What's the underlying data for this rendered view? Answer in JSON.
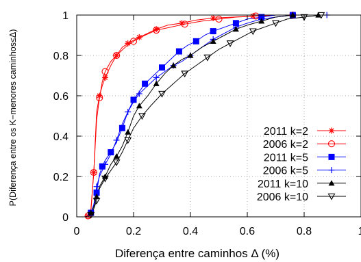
{
  "chart_data": {
    "type": "line",
    "xlabel": "Diferença entre caminhos Δ (%)",
    "ylabel": "P(Diferença entre os K−menores caminhos≤Δ)",
    "xlim": [
      0,
      1
    ],
    "ylim": [
      0,
      1
    ],
    "x_ticks": [
      "0",
      "0.2",
      "0.4",
      "0.6",
      "0.8",
      "1"
    ],
    "y_ticks": [
      "0",
      "0.2",
      "0.4",
      "0.6",
      "0.8",
      "1"
    ],
    "grid": true,
    "legend_position": "bottom-right",
    "series": [
      {
        "name": "2011 k=2",
        "color": "#ff0000",
        "marker": "asterisk",
        "points": [
          [
            0.03,
            0
          ],
          [
            0.04,
            0.005
          ],
          [
            0.05,
            0.03
          ],
          [
            0.06,
            0.22
          ],
          [
            0.07,
            0.52
          ],
          [
            0.08,
            0.6
          ],
          [
            0.09,
            0.65
          ],
          [
            0.1,
            0.69
          ],
          [
            0.12,
            0.75
          ],
          [
            0.14,
            0.8
          ],
          [
            0.16,
            0.84
          ],
          [
            0.18,
            0.86
          ],
          [
            0.2,
            0.875
          ],
          [
            0.22,
            0.89
          ],
          [
            0.25,
            0.91
          ],
          [
            0.28,
            0.93
          ],
          [
            0.32,
            0.95
          ],
          [
            0.37,
            0.96
          ],
          [
            0.42,
            0.975
          ],
          [
            0.48,
            0.985
          ],
          [
            0.55,
            0.99
          ],
          [
            0.62,
            0.995
          ],
          [
            0.7,
            1.0
          ],
          [
            0.76,
            1.0
          ]
        ]
      },
      {
        "name": "2006 k=2",
        "color": "#ff0000",
        "marker": "circle",
        "points": [
          [
            0.03,
            0
          ],
          [
            0.04,
            0.005
          ],
          [
            0.05,
            0.04
          ],
          [
            0.06,
            0.22
          ],
          [
            0.07,
            0.48
          ],
          [
            0.08,
            0.59
          ],
          [
            0.09,
            0.67
          ],
          [
            0.1,
            0.72
          ],
          [
            0.12,
            0.77
          ],
          [
            0.14,
            0.8
          ],
          [
            0.17,
            0.84
          ],
          [
            0.2,
            0.87
          ],
          [
            0.24,
            0.9
          ],
          [
            0.28,
            0.925
          ],
          [
            0.33,
            0.94
          ],
          [
            0.38,
            0.955
          ],
          [
            0.44,
            0.97
          ],
          [
            0.5,
            0.98
          ],
          [
            0.56,
            0.99
          ],
          [
            0.63,
            0.995
          ],
          [
            0.7,
            1.0
          ],
          [
            0.76,
            1.0
          ]
        ]
      },
      {
        "name": "2011 k=5",
        "color": "#0000ff",
        "marker": "square",
        "points": [
          [
            0.03,
            0
          ],
          [
            0.05,
            0.02
          ],
          [
            0.06,
            0.06
          ],
          [
            0.07,
            0.12
          ],
          [
            0.08,
            0.21
          ],
          [
            0.09,
            0.25
          ],
          [
            0.1,
            0.28
          ],
          [
            0.12,
            0.32
          ],
          [
            0.14,
            0.37
          ],
          [
            0.16,
            0.44
          ],
          [
            0.18,
            0.52
          ],
          [
            0.2,
            0.58
          ],
          [
            0.22,
            0.62
          ],
          [
            0.24,
            0.66
          ],
          [
            0.27,
            0.7
          ],
          [
            0.3,
            0.74
          ],
          [
            0.33,
            0.78
          ],
          [
            0.36,
            0.82
          ],
          [
            0.39,
            0.85
          ],
          [
            0.42,
            0.87
          ],
          [
            0.45,
            0.9
          ],
          [
            0.48,
            0.92
          ],
          [
            0.52,
            0.94
          ],
          [
            0.56,
            0.96
          ],
          [
            0.6,
            0.98
          ],
          [
            0.65,
            0.99
          ],
          [
            0.7,
            1.0
          ],
          [
            0.76,
            1.0
          ]
        ]
      },
      {
        "name": "2006 k=5",
        "color": "#0000ff",
        "marker": "plus",
        "points": [
          [
            0.03,
            0
          ],
          [
            0.05,
            0.02
          ],
          [
            0.06,
            0.06
          ],
          [
            0.07,
            0.15
          ],
          [
            0.08,
            0.2
          ],
          [
            0.1,
            0.26
          ],
          [
            0.12,
            0.31
          ],
          [
            0.14,
            0.38
          ],
          [
            0.16,
            0.46
          ],
          [
            0.18,
            0.52
          ],
          [
            0.2,
            0.57
          ],
          [
            0.22,
            0.61
          ],
          [
            0.25,
            0.65
          ],
          [
            0.28,
            0.69
          ],
          [
            0.31,
            0.72
          ],
          [
            0.34,
            0.75
          ],
          [
            0.37,
            0.77
          ],
          [
            0.4,
            0.8
          ],
          [
            0.44,
            0.84
          ],
          [
            0.48,
            0.88
          ],
          [
            0.52,
            0.91
          ],
          [
            0.56,
            0.94
          ],
          [
            0.6,
            0.96
          ],
          [
            0.65,
            0.98
          ],
          [
            0.7,
            0.99
          ],
          [
            0.76,
            1.0
          ],
          [
            0.88,
            1.0
          ]
        ]
      },
      {
        "name": "2011 k=10",
        "color": "#000000",
        "marker": "triangle-up",
        "points": [
          [
            0.03,
            0
          ],
          [
            0.05,
            0.02
          ],
          [
            0.06,
            0.05
          ],
          [
            0.07,
            0.1
          ],
          [
            0.08,
            0.15
          ],
          [
            0.1,
            0.2
          ],
          [
            0.12,
            0.26
          ],
          [
            0.14,
            0.3
          ],
          [
            0.16,
            0.35
          ],
          [
            0.18,
            0.42
          ],
          [
            0.2,
            0.5
          ],
          [
            0.22,
            0.55
          ],
          [
            0.25,
            0.6
          ],
          [
            0.28,
            0.66
          ],
          [
            0.31,
            0.71
          ],
          [
            0.34,
            0.75
          ],
          [
            0.37,
            0.78
          ],
          [
            0.4,
            0.8
          ],
          [
            0.44,
            0.84
          ],
          [
            0.48,
            0.87
          ],
          [
            0.52,
            0.9
          ],
          [
            0.56,
            0.93
          ],
          [
            0.6,
            0.95
          ],
          [
            0.65,
            0.97
          ],
          [
            0.7,
            0.99
          ],
          [
            0.76,
            1.0
          ],
          [
            0.85,
            1.0
          ]
        ]
      },
      {
        "name": "2006 k=10",
        "color": "#000000",
        "marker": "triangle-down",
        "points": [
          [
            0.03,
            0
          ],
          [
            0.05,
            0.01
          ],
          [
            0.06,
            0.04
          ],
          [
            0.07,
            0.08
          ],
          [
            0.08,
            0.14
          ],
          [
            0.1,
            0.19
          ],
          [
            0.12,
            0.23
          ],
          [
            0.14,
            0.27
          ],
          [
            0.16,
            0.32
          ],
          [
            0.18,
            0.38
          ],
          [
            0.2,
            0.44
          ],
          [
            0.23,
            0.5
          ],
          [
            0.26,
            0.55
          ],
          [
            0.3,
            0.61
          ],
          [
            0.34,
            0.66
          ],
          [
            0.38,
            0.71
          ],
          [
            0.42,
            0.75
          ],
          [
            0.46,
            0.79
          ],
          [
            0.5,
            0.83
          ],
          [
            0.54,
            0.86
          ],
          [
            0.58,
            0.89
          ],
          [
            0.62,
            0.92
          ],
          [
            0.66,
            0.94
          ],
          [
            0.7,
            0.96
          ],
          [
            0.74,
            0.98
          ],
          [
            0.8,
            0.99
          ],
          [
            0.86,
            1.0
          ]
        ]
      }
    ]
  }
}
